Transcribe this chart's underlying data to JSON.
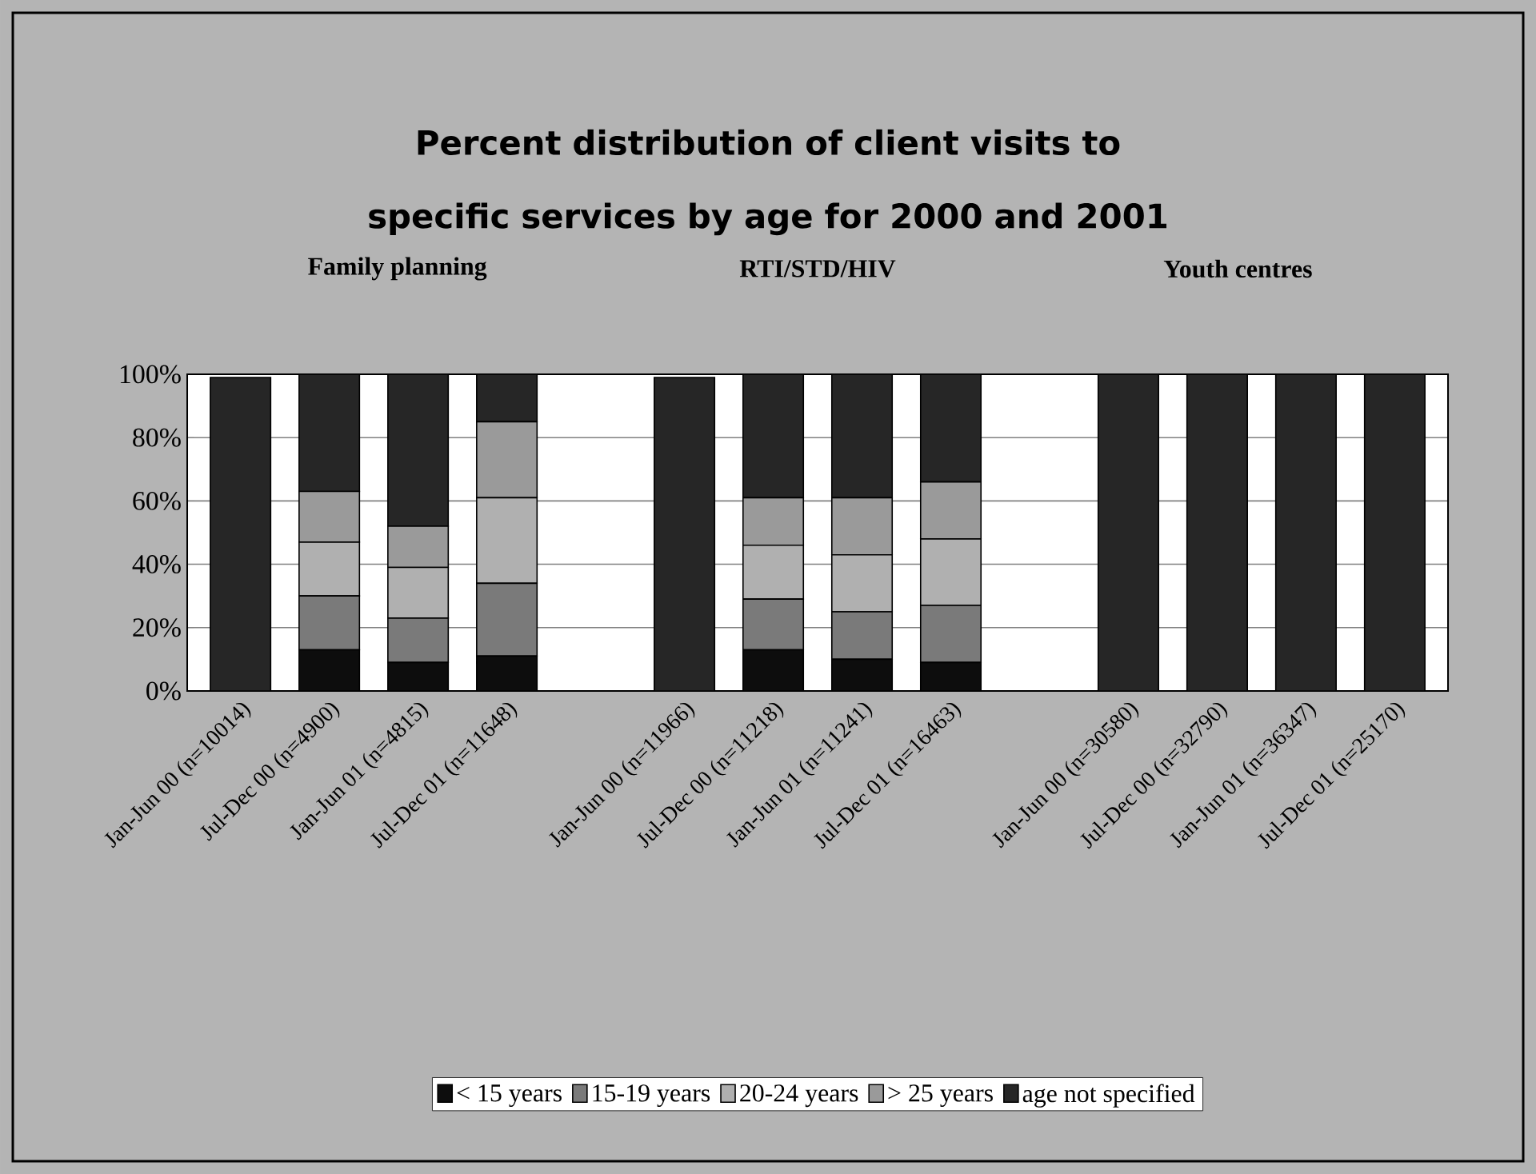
{
  "chart_data": {
    "type": "bar",
    "stacked": true,
    "title": "Percent distribution of client visits to specific services by age for 2000 and 2001",
    "annotations": [
      "Family planning",
      "RTI/STD/HIV",
      "Youth centres"
    ],
    "categories": [
      "Jan-Jun 00 (n=10014)",
      "Jul-Dec 00 (n=4900)",
      "Jan-Jun 01 (n=4815)",
      "Jul-Dec 01 (n=11648)",
      null,
      "Jan-Jun 00 (n=11966)",
      "Jul-Dec 00 (n=11218)",
      "Jan-Jun 01 (n=11241)",
      "Jul-Dec 01 (n=16463)",
      null,
      "Jan-Jun 00 (n=30580)",
      "Jul-Dec 00 (n=32790)",
      "Jan-Jun 01 (n=36347)",
      "Jul-Dec 01 (n=25170)"
    ],
    "series": [
      {
        "name": "< 15 years",
        "color": "#0d0d0d",
        "values": [
          null,
          13,
          9,
          11,
          null,
          null,
          13,
          10,
          9,
          null,
          0,
          0,
          0,
          0
        ]
      },
      {
        "name": "15-19 years",
        "color": "#7a7a7a",
        "values": [
          0,
          17,
          14,
          23,
          null,
          0,
          16,
          15,
          18,
          null,
          0,
          0,
          0,
          0
        ]
      },
      {
        "name": "20-24 years",
        "color": "#b0b0b0",
        "values": [
          0,
          17,
          16,
          27,
          null,
          0,
          17,
          18,
          21,
          null,
          0,
          0,
          0,
          0
        ]
      },
      {
        "name": "> 25 years",
        "color": "#9a9a9a",
        "values": [
          0,
          16,
          13,
          24,
          null,
          0,
          15,
          18,
          18,
          null,
          0,
          0,
          0,
          0
        ]
      },
      {
        "name": "age not specified",
        "color": "#262626",
        "values": [
          99,
          37,
          48,
          15,
          null,
          99,
          39,
          39,
          34,
          null,
          100,
          100,
          100,
          100
        ]
      }
    ],
    "ylim": [
      0,
      100
    ],
    "yticks": [
      {
        "value": 0,
        "label": "0%"
      },
      {
        "value": 20,
        "label": "20%"
      },
      {
        "value": 40,
        "label": "40%"
      },
      {
        "value": 60,
        "label": "60%"
      },
      {
        "value": 80,
        "label": "80%"
      },
      {
        "value": 100,
        "label": "100%"
      }
    ],
    "grid": "y",
    "legend": "bottom"
  }
}
